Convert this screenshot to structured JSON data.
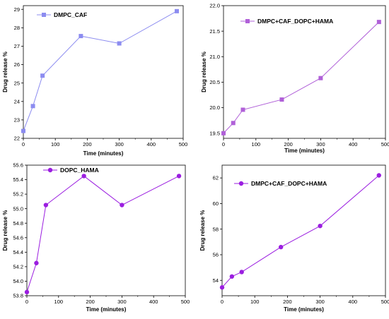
{
  "chart_data": [
    {
      "type": "line",
      "xlabel": "Time (minutes)",
      "ylabel": "Drug release %",
      "x": [
        0,
        30,
        60,
        180,
        300,
        480
      ],
      "xlim": [
        0,
        500
      ],
      "xticks": [
        "0",
        "100",
        "200",
        "300",
        "400",
        "500"
      ],
      "ylim": [
        22,
        29.2
      ],
      "yticks": [
        "22",
        "23",
        "24",
        "25",
        "26",
        "27",
        "28",
        "29"
      ],
      "legend_position": "top-left",
      "marker": "square",
      "color": "#8c8cf0",
      "series": [
        {
          "name": "DMPC_CAF",
          "values": [
            22.4,
            23.75,
            25.4,
            27.55,
            27.15,
            28.9
          ]
        }
      ]
    },
    {
      "type": "line",
      "xlabel": "Time (minutes)",
      "ylabel": "Drug release %",
      "x": [
        0,
        30,
        60,
        180,
        300,
        480
      ],
      "xlim": [
        0,
        500
      ],
      "xticks": [
        "0",
        "100",
        "200",
        "300",
        "400",
        "500"
      ],
      "ylim": [
        19.4,
        22
      ],
      "yticks": [
        "19.5",
        "20.0",
        "20.5",
        "21.0",
        "21.5",
        "22.0"
      ],
      "legend_position": "top-left",
      "marker": "square",
      "color": "#b060d8",
      "series": [
        {
          "name": "DMPC+CAF_DOPC+HAMA",
          "values": [
            19.5,
            19.7,
            19.96,
            20.16,
            20.58,
            21.68
          ]
        }
      ]
    },
    {
      "type": "line",
      "xlabel": "Time (minutes)",
      "ylabel": "Drug release %",
      "x": [
        0,
        30,
        60,
        180,
        300,
        480
      ],
      "xlim": [
        0,
        500
      ],
      "xticks": [
        "0",
        "100",
        "200",
        "300",
        "400",
        "500"
      ],
      "ylim": [
        53.8,
        55.6
      ],
      "yticks": [
        "53.8",
        "54.0",
        "54.2",
        "54.4",
        "54.6",
        "54.8",
        "55.0",
        "55.2",
        "55.4",
        "55.6"
      ],
      "legend_position": "top-left",
      "marker": "circle",
      "color": "#9b1ee0",
      "series": [
        {
          "name": "DOPC_HAMA",
          "values": [
            53.85,
            54.25,
            55.05,
            55.45,
            55.05,
            55.45
          ]
        }
      ]
    },
    {
      "type": "line",
      "xlabel": "Time (minutes)",
      "ylabel": "Drug release %",
      "x": [
        0,
        30,
        60,
        180,
        300,
        480
      ],
      "xlim": [
        0,
        500
      ],
      "xticks": [
        "0",
        "100",
        "200",
        "300",
        "400",
        "500"
      ],
      "ylim": [
        52.8,
        63
      ],
      "yticks": [
        "54",
        "56",
        "58",
        "60",
        "62"
      ],
      "legend_position": "top-left",
      "marker": "circle",
      "color": "#9b1ee0",
      "series": [
        {
          "name": "DMPC+CAF_DOPC+HAMA",
          "values": [
            53.45,
            54.3,
            54.65,
            56.6,
            58.25,
            62.2
          ]
        }
      ]
    }
  ]
}
